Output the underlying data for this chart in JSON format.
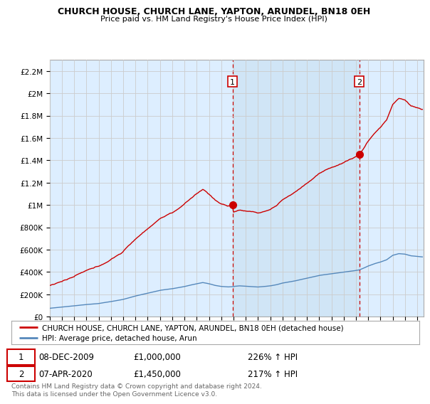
{
  "title": "CHURCH HOUSE, CHURCH LANE, YAPTON, ARUNDEL, BN18 0EH",
  "subtitle": "Price paid vs. HM Land Registry's House Price Index (HPI)",
  "ylabel_ticks": [
    "£0",
    "£200K",
    "£400K",
    "£600K",
    "£800K",
    "£1M",
    "£1.2M",
    "£1.4M",
    "£1.6M",
    "£1.8M",
    "£2M",
    "£2.2M"
  ],
  "ytick_values": [
    0,
    200000,
    400000,
    600000,
    800000,
    1000000,
    1200000,
    1400000,
    1600000,
    1800000,
    2000000,
    2200000
  ],
  "ylim": [
    0,
    2300000
  ],
  "xlim_start": 1995.0,
  "xlim_end": 2025.5,
  "sale1_x": 2009.93,
  "sale1_y": 1000000,
  "sale1_label": "1",
  "sale2_x": 2020.27,
  "sale2_y": 1450000,
  "sale2_label": "2",
  "vline1_x": 2009.93,
  "vline2_x": 2020.27,
  "house_line_color": "#cc0000",
  "hpi_line_color": "#5588bb",
  "vline_color": "#cc0000",
  "grid_color": "#cccccc",
  "plot_bg_color": "#ddeeff",
  "shade_color": "#cce0f0",
  "legend_label_house": "CHURCH HOUSE, CHURCH LANE, YAPTON, ARUNDEL, BN18 0EH (detached house)",
  "legend_label_hpi": "HPI: Average price, detached house, Arun",
  "footnote1_label": "1",
  "footnote1_date": "08-DEC-2009",
  "footnote1_price": "£1,000,000",
  "footnote1_hpi": "226% ↑ HPI",
  "footnote2_label": "2",
  "footnote2_date": "07-APR-2020",
  "footnote2_price": "£1,450,000",
  "footnote2_hpi": "217% ↑ HPI",
  "copyright": "Contains HM Land Registry data © Crown copyright and database right 2024.\nThis data is licensed under the Open Government Licence v3.0."
}
